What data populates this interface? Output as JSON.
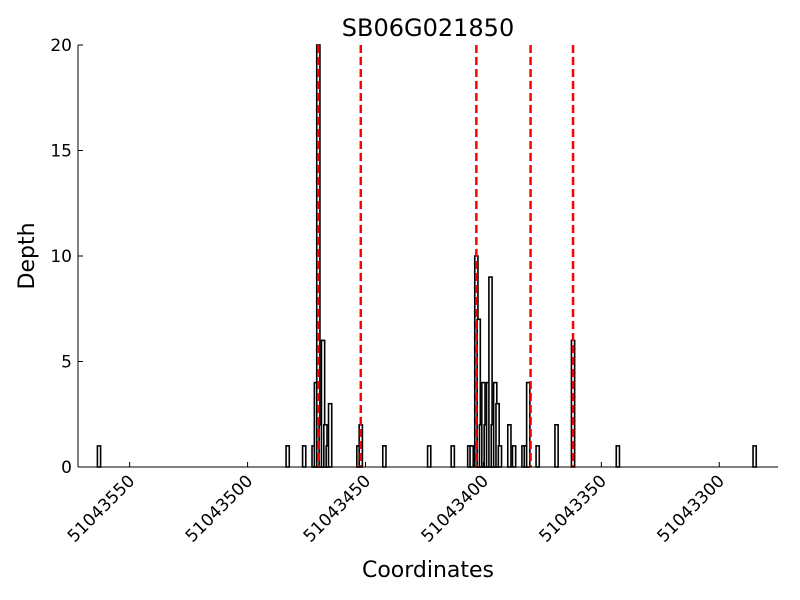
{
  "chart_data": {
    "type": "bar",
    "title": "SB06G021850",
    "xlabel": "Coordinates",
    "ylabel": "Depth",
    "xlim": [
      51043563,
      51043284
    ],
    "ylim": [
      0,
      20
    ],
    "x_reversed": true,
    "grid": false,
    "xticks": [
      51043550,
      51043500,
      51043450,
      51043400,
      51043350,
      51043300
    ],
    "yticks": [
      0,
      5,
      10,
      15,
      20
    ],
    "bar_color": "#000000",
    "marker_color": "#ff0000",
    "points": [
      {
        "x": 51043563,
        "y": 1
      },
      {
        "x": 51043483,
        "y": 1
      },
      {
        "x": 51043476,
        "y": 1
      },
      {
        "x": 51043472,
        "y": 1
      },
      {
        "x": 51043471,
        "y": 4
      },
      {
        "x": 51043470,
        "y": 20
      },
      {
        "x": 51043469,
        "y": 2
      },
      {
        "x": 51043468,
        "y": 6
      },
      {
        "x": 51043467,
        "y": 2
      },
      {
        "x": 51043466,
        "y": 1
      },
      {
        "x": 51043465,
        "y": 3
      },
      {
        "x": 51043453,
        "y": 1
      },
      {
        "x": 51043452,
        "y": 2
      },
      {
        "x": 51043442,
        "y": 1
      },
      {
        "x": 51043423,
        "y": 1
      },
      {
        "x": 51043413,
        "y": 1
      },
      {
        "x": 51043406,
        "y": 1
      },
      {
        "x": 51043405,
        "y": 1
      },
      {
        "x": 51043403,
        "y": 10
      },
      {
        "x": 51043402,
        "y": 7
      },
      {
        "x": 51043401,
        "y": 2
      },
      {
        "x": 51043400,
        "y": 4
      },
      {
        "x": 51043399,
        "y": 2
      },
      {
        "x": 51043398,
        "y": 4
      },
      {
        "x": 51043397,
        "y": 9
      },
      {
        "x": 51043396,
        "y": 2
      },
      {
        "x": 51043395,
        "y": 4
      },
      {
        "x": 51043394,
        "y": 3
      },
      {
        "x": 51043393,
        "y": 1
      },
      {
        "x": 51043389,
        "y": 2
      },
      {
        "x": 51043387,
        "y": 1
      },
      {
        "x": 51043383,
        "y": 1
      },
      {
        "x": 51043382,
        "y": 1
      },
      {
        "x": 51043381,
        "y": 4
      },
      {
        "x": 51043377,
        "y": 1
      },
      {
        "x": 51043369,
        "y": 2
      },
      {
        "x": 51043362,
        "y": 6
      },
      {
        "x": 51043343,
        "y": 1
      },
      {
        "x": 51043285,
        "y": 1
      }
    ],
    "markers": [
      51043470,
      51043452,
      51043403,
      51043380,
      51043362
    ]
  }
}
